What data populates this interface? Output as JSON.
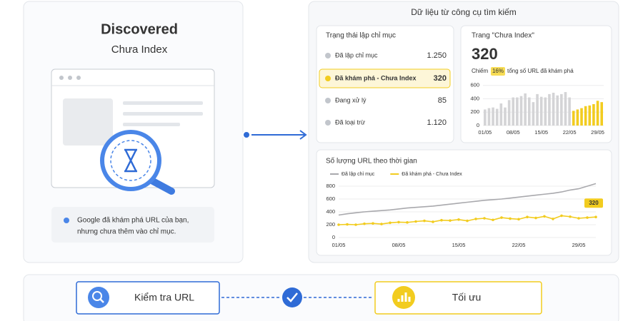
{
  "left_card": {
    "title": "Discovered",
    "subtitle": "Chưa Index",
    "note_line1": "Google đã khám phá URL của bạn,",
    "note_line2": "nhưng chưa thêm vào chỉ mục."
  },
  "panel_title": "Dữ liệu từ công cụ tìm kiếm",
  "indexing_status": {
    "title": "Trạng thái lập chỉ mục",
    "rows": [
      {
        "label": "Đã lập chỉ mục",
        "value": "1.250"
      },
      {
        "label": "Đã khám phá - Chưa Index",
        "value": "320"
      },
      {
        "label": "Đang xử lý",
        "value": "85"
      },
      {
        "label": "Đã loại trừ",
        "value": "1.120"
      }
    ]
  },
  "pending_card": {
    "title": "Trang \"Chưa Index\"",
    "count": 320,
    "share_prefix": "Chiếm",
    "share": "16%",
    "share_suffix": "tổng số URL đã khám phá",
    "chart": {
      "type": "bar",
      "categories": [
        "01/05",
        null,
        null,
        null,
        null,
        null,
        null,
        "08/05",
        null,
        null,
        null,
        null,
        null,
        null,
        "15/05",
        null,
        null,
        null,
        null,
        null,
        null,
        "22/05",
        null,
        null,
        null,
        null,
        null,
        null,
        "29/05",
        null
      ],
      "series": [
        {
          "color": "#d4d4d6",
          "values": [
            240,
            260,
            270,
            250,
            330,
            270,
            380,
            420,
            420,
            440,
            480,
            420,
            350,
            470,
            430,
            420,
            470,
            490,
            450,
            470,
            500,
            420,
            null,
            null,
            null,
            null,
            null,
            null,
            null,
            null
          ]
        },
        {
          "color": "#f2cc1f",
          "values": [
            null,
            null,
            null,
            null,
            null,
            null,
            null,
            null,
            null,
            null,
            null,
            null,
            null,
            null,
            null,
            null,
            null,
            null,
            null,
            null,
            null,
            null,
            220,
            240,
            260,
            290,
            300,
            320,
            370,
            350
          ]
        }
      ],
      "ylim": [
        0,
        650
      ],
      "yticks": [
        0,
        200,
        400,
        600
      ],
      "grid": true
    }
  },
  "url_chart": {
    "type": "line",
    "title": "Số lượng URL theo thời gian",
    "categories": [
      "01/05",
      null,
      null,
      null,
      null,
      null,
      null,
      "08/05",
      null,
      null,
      null,
      null,
      null,
      null,
      "15/05",
      null,
      null,
      null,
      null,
      null,
      null,
      "22/05",
      null,
      null,
      null,
      null,
      null,
      null,
      "29/05",
      null,
      null
    ],
    "series": [
      {
        "name": "Đã lập chỉ mục",
        "color": "#a9a9ad",
        "markers": false,
        "values": [
          350,
          370,
          385,
          400,
          410,
          420,
          430,
          445,
          460,
          470,
          480,
          490,
          505,
          520,
          535,
          550,
          565,
          580,
          590,
          600,
          615,
          630,
          645,
          660,
          675,
          690,
          710,
          740,
          760,
          800,
          840
        ]
      },
      {
        "name": "Đã khám phá - Chưa Index",
        "color": "#f2cc1f",
        "markers": true,
        "values": [
          200,
          205,
          200,
          215,
          220,
          210,
          230,
          240,
          235,
          250,
          260,
          245,
          270,
          265,
          280,
          260,
          290,
          300,
          275,
          310,
          295,
          285,
          320,
          305,
          330,
          290,
          340,
          325,
          300,
          310,
          320
        ]
      }
    ],
    "ylim": [
      0,
      850
    ],
    "yticks": [
      0,
      200,
      400,
      600,
      800
    ],
    "grid": true
  },
  "steps": {
    "first": "Kiểm tra URL",
    "second": "Tối ưu"
  }
}
